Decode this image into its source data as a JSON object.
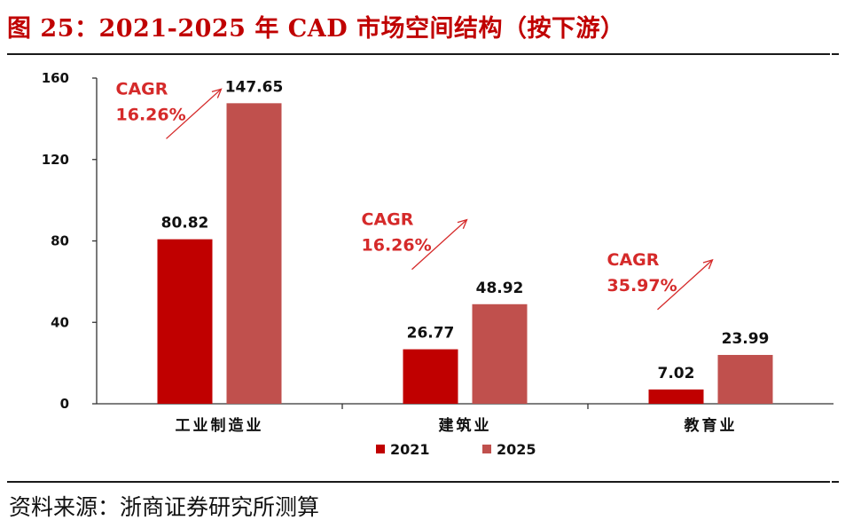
{
  "figure": {
    "title": "图 25：2021-2025 年 CAD 市场空间结构（按下游）",
    "source": "资料来源：浙商证券研究所测算"
  },
  "chart_data": {
    "type": "bar",
    "title": "2021-2025 年 CAD 市场空间结构（按下游）",
    "categories": [
      "工业制造业",
      "建筑业",
      "教育业"
    ],
    "series": [
      {
        "name": "2021",
        "color": "#c00000",
        "values": [
          80.82,
          26.77,
          7.02
        ],
        "labels": [
          "80.82",
          "26.77",
          "7.02"
        ]
      },
      {
        "name": "2025",
        "color": "#c0504d",
        "values": [
          147.65,
          48.92,
          23.99
        ],
        "labels": [
          "147.65",
          "48.92",
          "23.99"
        ]
      }
    ],
    "cagr": [
      {
        "label": "CAGR",
        "value": "16.26%"
      },
      {
        "label": "CAGR",
        "value": "16.26%"
      },
      {
        "label": "CAGR",
        "value": "35.97%"
      }
    ],
    "ylim": [
      0,
      160
    ],
    "yticks": [
      0,
      40,
      80,
      120,
      160
    ],
    "xlabel": "",
    "ylabel": "",
    "grid": false,
    "legend_position": "bottom-center",
    "annotation_color": "#d52a2a"
  }
}
